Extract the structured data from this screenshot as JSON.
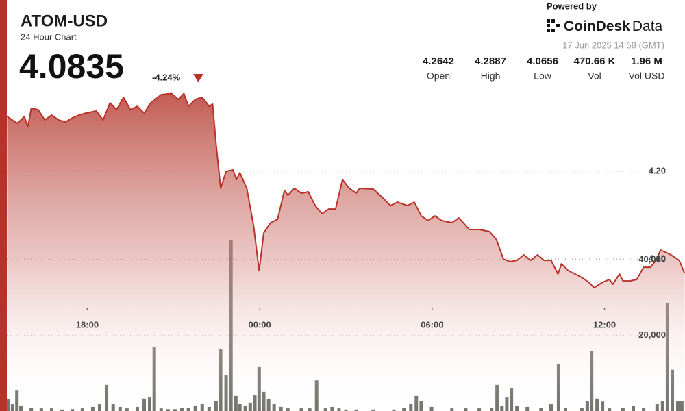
{
  "chart_data": {
    "type": "line",
    "title": "ATOM-USD",
    "subtitle": "24 Hour Chart",
    "price": 4.0835,
    "change": "-4.24%",
    "powered_by": "Powered by",
    "brand_name": "CoinDesk",
    "brand_suffix": "Data",
    "timestamp": "17 Jun 2025 14:58 (GMT)",
    "stats": [
      {
        "name": "Open",
        "value": 4.2642
      },
      {
        "name": "High",
        "value": 4.2887
      },
      {
        "name": "Low",
        "value": 4.0656
      },
      {
        "name": "Vol",
        "value": 470660,
        "value_label": "470.66 K"
      },
      {
        "name": "Vol USD",
        "value": 1960000,
        "value_label": "1.96 M"
      }
    ],
    "xlim": [
      -8.8,
      14.8
    ],
    "xticks": [
      {
        "value": -6,
        "label": "18:00"
      },
      {
        "value": 0,
        "label": "00:00"
      },
      {
        "value": 6,
        "label": "06:00"
      },
      {
        "value": 12,
        "label": "12:00"
      }
    ],
    "ylim": [
      3.9266,
      4.2938
    ],
    "yticks": [
      {
        "value": 4.2,
        "label": "4.20"
      },
      {
        "value": 4.1,
        "label": "4.10"
      }
    ],
    "y2lim": [
      0,
      85000
    ],
    "y2ticks": [
      {
        "value": 40000,
        "label": "40,000"
      },
      {
        "value": 20000,
        "label": "20,000"
      }
    ],
    "grid": true,
    "series": [
      {
        "color": "#b8322a",
        "x": [
          -8.79,
          -8.43,
          -8.19,
          -8.07,
          -7.95,
          -7.71,
          -7.48,
          -7.24,
          -7.0,
          -6.76,
          -6.52,
          -6.29,
          -6.05,
          -5.69,
          -5.45,
          -5.21,
          -4.98,
          -4.74,
          -4.5,
          -4.26,
          -4.02,
          -3.79,
          -3.43,
          -3.07,
          -2.83,
          -2.64,
          -2.48,
          -2.24,
          -2.0,
          -1.76,
          -1.64,
          -1.52,
          -1.36,
          -1.17,
          -0.93,
          -0.81,
          -0.69,
          -0.45,
          -0.21,
          -0.02,
          0.14,
          0.38,
          0.62,
          0.86,
          0.98,
          1.21,
          1.45,
          1.69,
          1.93,
          2.17,
          2.4,
          2.64,
          2.88,
          3.12,
          3.36,
          3.48,
          3.95,
          4.31,
          4.55,
          4.79,
          5.14,
          5.38,
          5.62,
          5.86,
          6.1,
          6.33,
          6.69,
          6.93,
          7.29,
          7.64,
          8.0,
          8.24,
          8.48,
          8.71,
          8.95,
          9.19,
          9.43,
          9.67,
          9.9,
          10.14,
          10.38,
          10.5,
          10.74,
          10.98,
          11.21,
          11.45,
          11.64,
          11.93,
          12.17,
          12.29,
          12.52,
          12.64,
          12.88,
          13.12,
          13.36,
          13.6,
          13.79,
          13.95,
          14.31,
          14.6,
          14.79
        ],
        "values": [
          4.2625,
          4.2547,
          4.2625,
          4.2508,
          4.2719,
          4.2703,
          4.2586,
          4.2641,
          4.2586,
          4.2563,
          4.2609,
          4.2641,
          4.2664,
          4.2688,
          4.2586,
          4.2781,
          4.2703,
          4.2844,
          4.2703,
          4.2742,
          4.2664,
          4.2781,
          4.2875,
          4.2887,
          4.282,
          4.2887,
          4.2742,
          4.282,
          4.2844,
          4.2742,
          4.2766,
          4.2313,
          4.1805,
          4.2,
          4.2016,
          4.1906,
          4.1984,
          4.1805,
          4.1375,
          4.0867,
          4.1297,
          4.1414,
          4.1453,
          4.1781,
          4.1727,
          4.1805,
          4.175,
          4.1766,
          4.1609,
          4.1516,
          4.157,
          4.157,
          4.1906,
          4.1805,
          4.175,
          4.1805,
          4.1797,
          4.1688,
          4.1609,
          4.1648,
          4.1609,
          4.1648,
          4.1492,
          4.1438,
          4.1492,
          4.1438,
          4.1414,
          4.1469,
          4.1336,
          4.1336,
          4.1313,
          4.1219,
          4.1,
          4.0969,
          4.0984,
          4.1047,
          4.0984,
          4.1047,
          4.0984,
          4.0984,
          4.0828,
          4.0945,
          4.0867,
          4.0828,
          4.0789,
          4.0734,
          4.0672,
          4.0734,
          4.0766,
          4.0711,
          4.0828,
          4.075,
          4.075,
          4.0766,
          4.0906,
          4.0906,
          4.0984,
          4.1102,
          4.1047,
          4.0984,
          4.0835
        ]
      },
      {
        "color": "#5d5d55",
        "axis": "y2",
        "type": "bar",
        "x": [
          -8.74,
          -8.6,
          -8.45,
          -8.31,
          -7.95,
          -7.6,
          -7.24,
          -6.88,
          -6.52,
          -6.17,
          -5.81,
          -5.57,
          -5.33,
          -5.1,
          -4.86,
          -4.62,
          -4.26,
          -4.02,
          -3.83,
          -3.67,
          -3.43,
          -3.19,
          -2.95,
          -2.71,
          -2.48,
          -2.24,
          -2.0,
          -1.76,
          -1.52,
          -1.36,
          -1.17,
          -1.0,
          -0.83,
          -0.69,
          -0.5,
          -0.33,
          -0.17,
          -0.02,
          0.14,
          0.31,
          0.5,
          0.74,
          0.98,
          1.45,
          1.74,
          1.98,
          2.29,
          2.52,
          2.76,
          3.0,
          3.36,
          3.95,
          4.67,
          5.02,
          5.26,
          5.45,
          5.62,
          5.98,
          6.69,
          7.17,
          7.64,
          8.07,
          8.26,
          8.43,
          8.6,
          8.76,
          8.95,
          9.31,
          9.79,
          10.14,
          10.4,
          10.64,
          11.21,
          11.4,
          11.55,
          11.74,
          11.93,
          12.17,
          12.64,
          13.0,
          13.36,
          13.83,
          14.02,
          14.19,
          14.36,
          14.55,
          14.69
        ],
        "values": [
          3100,
          1800,
          5400,
          1400,
          900,
          700,
          700,
          400,
          500,
          700,
          1100,
          1800,
          6900,
          1800,
          1100,
          700,
          1100,
          3300,
          3600,
          17000,
          700,
          500,
          500,
          900,
          900,
          1300,
          1800,
          1100,
          2700,
          16300,
          9400,
          45200,
          4000,
          1800,
          1400,
          2200,
          4300,
          11600,
          5100,
          3100,
          1800,
          1100,
          700,
          700,
          700,
          8100,
          700,
          1100,
          700,
          400,
          400,
          400,
          400,
          900,
          1800,
          4000,
          2700,
          1100,
          700,
          700,
          700,
          900,
          6900,
          1400,
          3600,
          6100,
          1400,
          1100,
          900,
          1800,
          12300,
          900,
          900,
          2700,
          15900,
          3300,
          2500,
          700,
          900,
          1400,
          900,
          1800,
          2700,
          28600,
          10900,
          2700,
          2700
        ]
      }
    ]
  }
}
